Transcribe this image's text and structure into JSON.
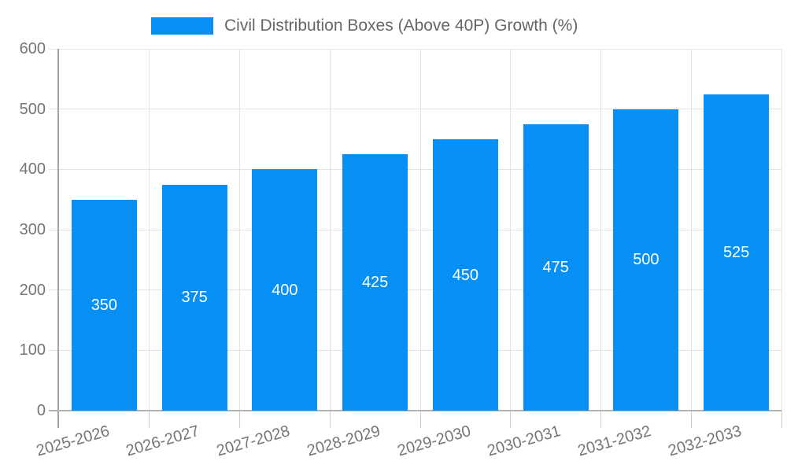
{
  "legend": {
    "label": "Civil Distribution Boxes (Above 40P) Growth (%)"
  },
  "colors": {
    "bar": "#0690F5",
    "grid_line": "#E2E2E2",
    "y_axis_line": "#A3A3A3",
    "x_axis_line": "#B3B3B3",
    "tick_mark": "#CCCCCC",
    "axis_label": "#757575",
    "value_label": "#FFFFFF",
    "legend_text": "#666666",
    "background": "#FFFFFF"
  },
  "chart_data": {
    "type": "bar",
    "title": "Civil Distribution Boxes (Above 40P) Growth (%)",
    "categories": [
      "2025-2026",
      "2026-2027",
      "2027-2028",
      "2028-2029",
      "2029-2030",
      "2030-2031",
      "2031-2032",
      "2032-2033"
    ],
    "values": [
      350,
      375,
      400,
      425,
      450,
      475,
      500,
      525
    ],
    "xlabel": "",
    "ylabel": "",
    "ylim": [
      0,
      600
    ],
    "yticks": [
      0,
      100,
      200,
      300,
      400,
      500,
      600
    ],
    "grid": true,
    "legend_position": "top-center",
    "value_labels": "inside-center"
  }
}
